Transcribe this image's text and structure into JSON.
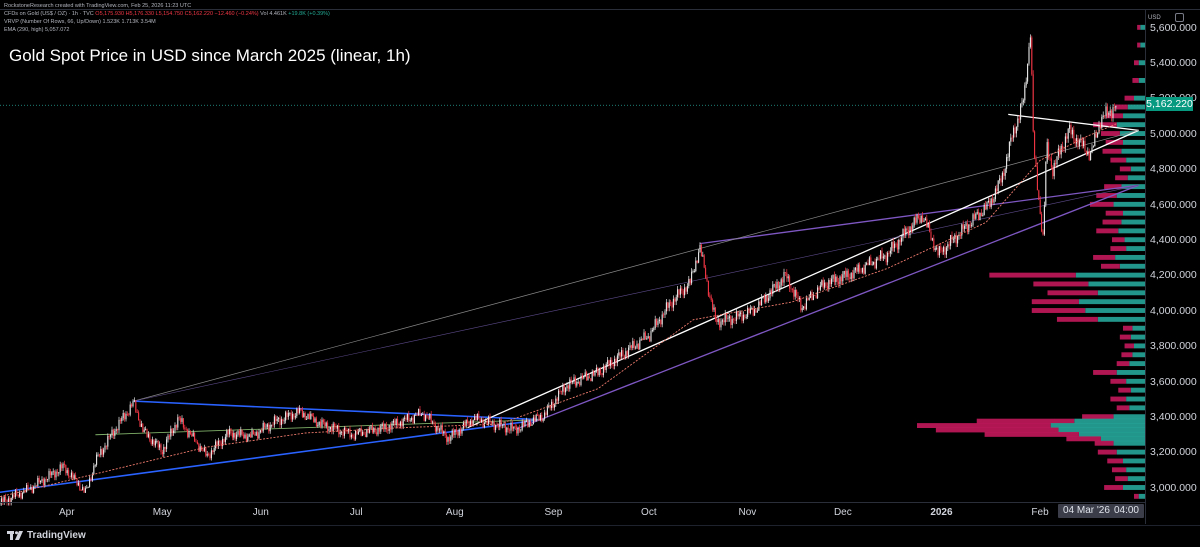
{
  "header": {
    "credit": "RockstoneResearch created with TradingView.com, Feb 25, 2026 11:23 UTC",
    "symbol": "CFDs on Gold (US$ / OZ) · 1h · TVC",
    "ohlc": "O5,175.930 H5,176.330 L5,154.750 C5,162.220 −12.460 (−0.24%)",
    "vol": "Vol 4.461K",
    "vol_chg": "+19.8K (+0.39%)",
    "vrvp": "VRVP (Number Of Rows, 66, Up/Down)  1.523K  1.713K  3.54M",
    "ema": "EMA (290, high)  5,057.072"
  },
  "title": "Gold Spot Price in USD since March 2025 (linear, 1h)",
  "currency": "USD",
  "last_price": "5,162.220",
  "cursor_date": "04 Mar '26",
  "cursor_time": "04:00",
  "footer": {
    "brand": "TradingView"
  },
  "colors": {
    "background": "#000000",
    "up_candle": "#e8e8e8",
    "down_candle": "#f23645",
    "ema_line": "#ef7b6e",
    "blue_trendline": "#2962ff",
    "purple_trendline": "#7e57c2",
    "white_trendline": "#ffffff",
    "vp_up": "#26a69a",
    "vp_down": "#c2185b",
    "price_badge": "#089981"
  },
  "chart_data": {
    "type": "line",
    "title": "Gold Spot Price in USD since March 2025 (linear, 1h)",
    "ylim": [
      2920,
      5700
    ],
    "y_ticks": [
      "5,600.000",
      "5,400.000",
      "5,200.000",
      "5,000.000",
      "4,800.000",
      "4,600.000",
      "4,400.000",
      "4,200.000",
      "4,000.000",
      "3,800.000",
      "3,600.000",
      "3,400.000",
      "3,200.000",
      "3,000.000"
    ],
    "x_ticks": [
      "Apr",
      "May",
      "Jun",
      "Jul",
      "Aug",
      "Sep",
      "Oct",
      "Nov",
      "Dec",
      "2026",
      "Feb"
    ],
    "x_tick_positions": [
      "2025-04-01",
      "2025-05-01",
      "2025-06-01",
      "2025-07-01",
      "2025-08-01",
      "2025-09-01",
      "2025-10-01",
      "2025-11-01",
      "2025-12-01",
      "2026-01-01",
      "2026-02-01"
    ],
    "xlim": [
      "2025-03-11",
      "2026-03-06"
    ],
    "series": [
      {
        "type": "price",
        "x": [
          "2025-03-11",
          "2025-03-20",
          "2025-03-31",
          "2025-04-07",
          "2025-04-10",
          "2025-04-15",
          "2025-04-22",
          "2025-04-25",
          "2025-05-01",
          "2025-05-06",
          "2025-05-15",
          "2025-05-22",
          "2025-05-29",
          "2025-06-05",
          "2025-06-13",
          "2025-06-20",
          "2025-06-30",
          "2025-07-10",
          "2025-07-22",
          "2025-07-30",
          "2025-08-07",
          "2025-08-20",
          "2025-08-29",
          "2025-09-05",
          "2025-09-15",
          "2025-09-23",
          "2025-10-01",
          "2025-10-08",
          "2025-10-14",
          "2025-10-17",
          "2025-10-20",
          "2025-10-22",
          "2025-10-28",
          "2025-11-03",
          "2025-11-13",
          "2025-11-18",
          "2025-11-25",
          "2025-12-05",
          "2025-12-15",
          "2025-12-22",
          "2025-12-26",
          "2025-12-31",
          "2026-01-09",
          "2026-01-16",
          "2026-01-20",
          "2026-01-23",
          "2026-01-27",
          "2026-01-29",
          "2026-01-30",
          "2026-02-02",
          "2026-02-03",
          "2026-02-05",
          "2026-02-10",
          "2026-02-17",
          "2026-02-20",
          "2026-02-25"
        ],
        "y": [
          2915,
          2990,
          3120,
          2970,
          3150,
          3300,
          3480,
          3320,
          3210,
          3390,
          3180,
          3310,
          3290,
          3370,
          3430,
          3360,
          3300,
          3340,
          3420,
          3280,
          3390,
          3330,
          3410,
          3580,
          3650,
          3760,
          3860,
          4050,
          4160,
          4360,
          4100,
          3940,
          3960,
          4000,
          4200,
          4020,
          4150,
          4220,
          4320,
          4470,
          4540,
          4320,
          4480,
          4600,
          4750,
          4970,
          5200,
          5590,
          4900,
          4400,
          4930,
          4800,
          5020,
          4880,
          5080,
          5162
        ]
      },
      {
        "type": "ema",
        "name": "EMA (290, high)",
        "x": [
          "2025-03-11",
          "2025-04-15",
          "2025-05-15",
          "2025-06-15",
          "2025-07-15",
          "2025-08-15",
          "2025-09-15",
          "2025-10-15",
          "2025-11-15",
          "2025-12-15",
          "2026-01-15",
          "2026-02-01",
          "2026-02-15",
          "2026-02-25"
        ],
        "y": [
          2950,
          3100,
          3230,
          3310,
          3340,
          3360,
          3560,
          3950,
          4050,
          4240,
          4500,
          4850,
          4980,
          5057
        ]
      }
    ],
    "trendlines": [
      {
        "color": "blue",
        "from": [
          "2025-03-11",
          2975
        ],
        "to": [
          "2025-08-28",
          3385
        ]
      },
      {
        "color": "blue",
        "from": [
          "2025-04-22",
          3490
        ],
        "to": [
          "2025-08-28",
          3385
        ]
      },
      {
        "color": "purple",
        "from": [
          "2025-08-20",
          3330
        ],
        "to": [
          "2026-03-04",
          4710
        ]
      },
      {
        "color": "purple",
        "from": [
          "2025-10-17",
          4380
        ],
        "to": [
          "2026-03-04",
          4710
        ]
      },
      {
        "color": "white",
        "from": [
          "2025-08-05",
          3340
        ],
        "to": [
          "2026-03-04",
          5020
        ]
      },
      {
        "color": "white",
        "from": [
          "2026-01-22",
          5110
        ],
        "to": [
          "2026-03-04",
          5020
        ]
      },
      {
        "color": "grey",
        "from": [
          "2025-04-22",
          3490
        ],
        "to": [
          "2026-03-04",
          5020
        ]
      }
    ],
    "volume_profile": {
      "name": "VRVP",
      "rows": [
        {
          "price": 5600,
          "up": 3,
          "down": 2
        },
        {
          "price": 5500,
          "up": 3,
          "down": 2
        },
        {
          "price": 5400,
          "up": 4,
          "down": 3
        },
        {
          "price": 5300,
          "up": 4,
          "down": 4
        },
        {
          "price": 5200,
          "up": 7,
          "down": 6
        },
        {
          "price": 5150,
          "up": 11,
          "down": 8
        },
        {
          "price": 5100,
          "up": 14,
          "down": 11
        },
        {
          "price": 5050,
          "up": 18,
          "down": 15
        },
        {
          "price": 5000,
          "up": 16,
          "down": 12
        },
        {
          "price": 4950,
          "up": 14,
          "down": 11
        },
        {
          "price": 4900,
          "up": 15,
          "down": 12
        },
        {
          "price": 4850,
          "up": 12,
          "down": 10
        },
        {
          "price": 4800,
          "up": 9,
          "down": 7
        },
        {
          "price": 4750,
          "up": 11,
          "down": 8
        },
        {
          "price": 4700,
          "up": 15,
          "down": 11
        },
        {
          "price": 4650,
          "up": 18,
          "down": 13
        },
        {
          "price": 4600,
          "up": 20,
          "down": 15
        },
        {
          "price": 4550,
          "up": 14,
          "down": 11
        },
        {
          "price": 4500,
          "up": 15,
          "down": 12
        },
        {
          "price": 4450,
          "up": 17,
          "down": 14
        },
        {
          "price": 4400,
          "up": 13,
          "down": 8
        },
        {
          "price": 4350,
          "up": 12,
          "down": 10
        },
        {
          "price": 4300,
          "up": 19,
          "down": 14
        },
        {
          "price": 4250,
          "up": 16,
          "down": 12
        },
        {
          "price": 4200,
          "up": 44,
          "down": 55
        },
        {
          "price": 4150,
          "up": 36,
          "down": 35
        },
        {
          "price": 4100,
          "up": 30,
          "down": 32
        },
        {
          "price": 4050,
          "up": 42,
          "down": 30
        },
        {
          "price": 4000,
          "up": 38,
          "down": 34
        },
        {
          "price": 3950,
          "up": 30,
          "down": 26
        },
        {
          "price": 3900,
          "up": 8,
          "down": 6
        },
        {
          "price": 3850,
          "up": 9,
          "down": 7
        },
        {
          "price": 3800,
          "up": 7,
          "down": 6
        },
        {
          "price": 3750,
          "up": 8,
          "down": 7
        },
        {
          "price": 3700,
          "up": 10,
          "down": 8
        },
        {
          "price": 3650,
          "up": 18,
          "down": 15
        },
        {
          "price": 3600,
          "up": 12,
          "down": 10
        },
        {
          "price": 3550,
          "up": 9,
          "down": 8
        },
        {
          "price": 3500,
          "up": 12,
          "down": 10
        },
        {
          "price": 3450,
          "up": 10,
          "down": 8
        },
        {
          "price": 3400,
          "up": 20,
          "down": 20
        },
        {
          "price": 3375,
          "up": 45,
          "down": 62
        },
        {
          "price": 3350,
          "up": 60,
          "down": 85
        },
        {
          "price": 3325,
          "up": 55,
          "down": 78
        },
        {
          "price": 3300,
          "up": 42,
          "down": 60
        },
        {
          "price": 3275,
          "up": 28,
          "down": 22
        },
        {
          "price": 3250,
          "up": 20,
          "down": 12
        },
        {
          "price": 3200,
          "up": 18,
          "down": 12
        },
        {
          "price": 3150,
          "up": 14,
          "down": 10
        },
        {
          "price": 3100,
          "up": 12,
          "down": 9
        },
        {
          "price": 3050,
          "up": 11,
          "down": 8
        },
        {
          "price": 3000,
          "up": 14,
          "down": 12
        },
        {
          "price": 2950,
          "up": 4,
          "down": 3
        }
      ]
    }
  }
}
